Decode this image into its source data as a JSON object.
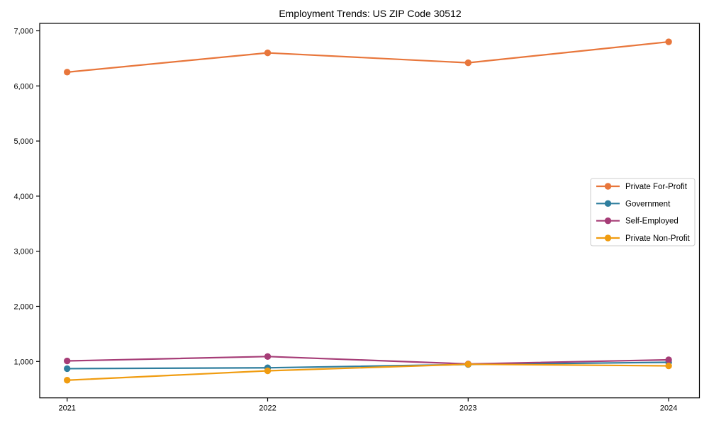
{
  "chart_data": {
    "type": "line",
    "title": "Employment Trends: US ZIP Code 30512",
    "categories": [
      "2021",
      "2022",
      "2023",
      "2024"
    ],
    "x": [
      2021,
      2022,
      2023,
      2024
    ],
    "series": [
      {
        "name": "Private For-Profit",
        "color": "#e8763b",
        "values": [
          6250,
          6600,
          6420,
          6800
        ]
      },
      {
        "name": "Government",
        "color": "#2f7e9e",
        "values": [
          870,
          885,
          945,
          985
        ]
      },
      {
        "name": "Self-Employed",
        "color": "#a63d77",
        "values": [
          1010,
          1090,
          955,
          1030
        ]
      },
      {
        "name": "Private Non-Profit",
        "color": "#f09c10",
        "values": [
          660,
          830,
          950,
          920
        ]
      }
    ],
    "xlabel": "",
    "ylabel": "",
    "yticks": [
      1000,
      2000,
      3000,
      4000,
      5000,
      6000,
      7000
    ],
    "ytick_labels": [
      "1,000",
      "2,000",
      "3,000",
      "4,000",
      "5,000",
      "6,000",
      "7,000"
    ],
    "ylim": [
      340,
      7130
    ],
    "xlim": [
      2020.85,
      2024.15
    ],
    "grid": false,
    "legend_position": "center-right",
    "marker": "circle",
    "axis_color": "#000000",
    "legend_border_color": "#cccccc",
    "background_color": "#ffffff"
  }
}
